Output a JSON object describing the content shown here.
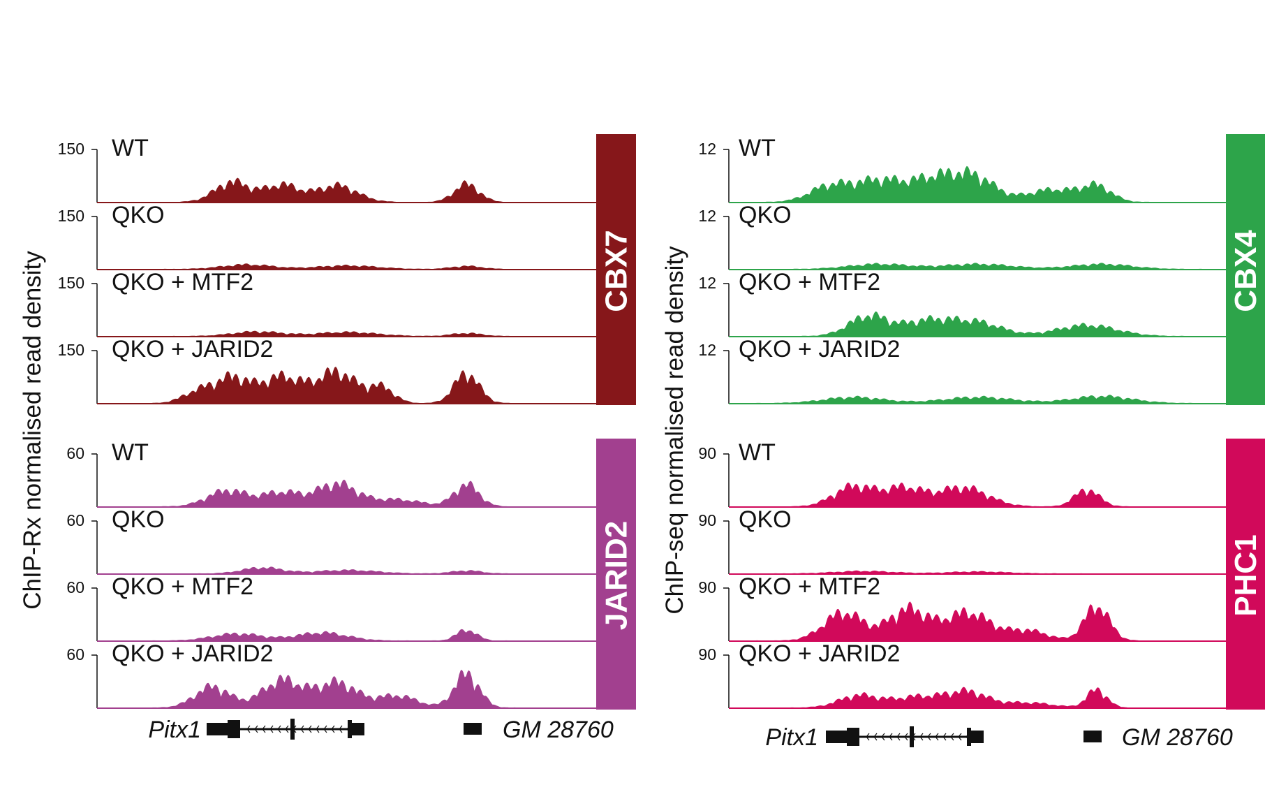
{
  "chart_data": {
    "type": "area",
    "title": "",
    "panels": [
      {
        "name": "left",
        "ylabel": "ChIP-Rx normalised read density",
        "genes": [
          {
            "name": "Pitx1"
          },
          {
            "name": "GM 28760"
          }
        ],
        "groups": [
          {
            "protein": "CBX7",
            "color": "#86171a",
            "ymax": 150,
            "tracks": [
              {
                "condition": "WT",
                "peaks": [
                  [
                    0.27,
                    0.4,
                    0.035
                  ],
                  [
                    0.37,
                    0.34,
                    0.035
                  ],
                  [
                    0.48,
                    0.33,
                    0.04
                  ],
                  [
                    0.74,
                    0.36,
                    0.025
                  ]
                ]
              },
              {
                "condition": "QKO",
                "peaks": [
                  [
                    0.3,
                    0.09,
                    0.05
                  ],
                  [
                    0.5,
                    0.07,
                    0.06
                  ],
                  [
                    0.74,
                    0.06,
                    0.03
                  ]
                ]
              },
              {
                "condition": "QKO + MTF2",
                "peaks": [
                  [
                    0.32,
                    0.09,
                    0.05
                  ],
                  [
                    0.5,
                    0.08,
                    0.06
                  ],
                  [
                    0.74,
                    0.06,
                    0.03
                  ]
                ]
              },
              {
                "condition": "QKO + JARID2",
                "peaks": [
                  [
                    0.2,
                    0.22,
                    0.03
                  ],
                  [
                    0.27,
                    0.5,
                    0.035
                  ],
                  [
                    0.37,
                    0.52,
                    0.04
                  ],
                  [
                    0.48,
                    0.62,
                    0.04
                  ],
                  [
                    0.57,
                    0.3,
                    0.025
                  ],
                  [
                    0.74,
                    0.6,
                    0.025
                  ]
                ]
              }
            ]
          },
          {
            "protein": "JARID2",
            "color": "#a2408f",
            "ymax": 60,
            "tracks": [
              {
                "condition": "WT",
                "peaks": [
                  [
                    0.26,
                    0.32,
                    0.04
                  ],
                  [
                    0.37,
                    0.28,
                    0.04
                  ],
                  [
                    0.48,
                    0.45,
                    0.04
                  ],
                  [
                    0.6,
                    0.14,
                    0.05
                  ],
                  [
                    0.74,
                    0.44,
                    0.025
                  ]
                ]
              },
              {
                "condition": "QKO",
                "peaks": [
                  [
                    0.33,
                    0.12,
                    0.04
                  ],
                  [
                    0.5,
                    0.07,
                    0.06
                  ],
                  [
                    0.74,
                    0.06,
                    0.03
                  ]
                ]
              },
              {
                "condition": "QKO + MTF2",
                "peaks": [
                  [
                    0.28,
                    0.14,
                    0.05
                  ],
                  [
                    0.45,
                    0.16,
                    0.05
                  ],
                  [
                    0.74,
                    0.22,
                    0.02
                  ]
                ]
              },
              {
                "condition": "QKO + JARID2",
                "peaks": [
                  [
                    0.23,
                    0.42,
                    0.035
                  ],
                  [
                    0.37,
                    0.55,
                    0.04
                  ],
                  [
                    0.48,
                    0.5,
                    0.04
                  ],
                  [
                    0.6,
                    0.24,
                    0.04
                  ],
                  [
                    0.74,
                    0.68,
                    0.025
                  ]
                ]
              }
            ]
          }
        ]
      },
      {
        "name": "right",
        "ylabel": "ChIP-seq normalised read density",
        "genes": [
          {
            "name": "Pitx1"
          },
          {
            "name": "GM 28760"
          }
        ],
        "groups": [
          {
            "protein": "CBX4",
            "color": "#2da44a",
            "ymax": 12,
            "tracks": [
              {
                "condition": "WT",
                "peaks": [
                  [
                    0.2,
                    0.3,
                    0.04
                  ],
                  [
                    0.3,
                    0.42,
                    0.05
                  ],
                  [
                    0.42,
                    0.48,
                    0.05
                  ],
                  [
                    0.5,
                    0.4,
                    0.04
                  ],
                  [
                    0.65,
                    0.25,
                    0.05
                  ],
                  [
                    0.74,
                    0.3,
                    0.03
                  ]
                ]
              },
              {
                "condition": "QKO",
                "peaks": [
                  [
                    0.3,
                    0.1,
                    0.06
                  ],
                  [
                    0.5,
                    0.1,
                    0.07
                  ],
                  [
                    0.75,
                    0.1,
                    0.06
                  ]
                ]
              },
              {
                "condition": "QKO + MTF2",
                "peaks": [
                  [
                    0.28,
                    0.4,
                    0.04
                  ],
                  [
                    0.4,
                    0.3,
                    0.05
                  ],
                  [
                    0.5,
                    0.26,
                    0.05
                  ],
                  [
                    0.72,
                    0.22,
                    0.06
                  ]
                ]
              },
              {
                "condition": "QKO + JARID2",
                "peaks": [
                  [
                    0.25,
                    0.12,
                    0.06
                  ],
                  [
                    0.5,
                    0.12,
                    0.07
                  ],
                  [
                    0.75,
                    0.14,
                    0.06
                  ]
                ]
              }
            ]
          },
          {
            "protein": "PHC1",
            "color": "#d1095a",
            "ymax": 90,
            "tracks": [
              {
                "condition": "WT",
                "peaks": [
                  [
                    0.25,
                    0.4,
                    0.04
                  ],
                  [
                    0.35,
                    0.36,
                    0.04
                  ],
                  [
                    0.47,
                    0.38,
                    0.05
                  ],
                  [
                    0.72,
                    0.34,
                    0.025
                  ]
                ]
              },
              {
                "condition": "QKO",
                "peaks": [
                  [
                    0.27,
                    0.05,
                    0.06
                  ],
                  [
                    0.5,
                    0.04,
                    0.06
                  ]
                ]
              },
              {
                "condition": "QKO + MTF2",
                "peaks": [
                  [
                    0.23,
                    0.56,
                    0.04
                  ],
                  [
                    0.36,
                    0.62,
                    0.04
                  ],
                  [
                    0.48,
                    0.56,
                    0.045
                  ],
                  [
                    0.6,
                    0.2,
                    0.04
                  ],
                  [
                    0.74,
                    0.7,
                    0.025
                  ]
                ]
              },
              {
                "condition": "QKO + JARID2",
                "peaks": [
                  [
                    0.26,
                    0.24,
                    0.04
                  ],
                  [
                    0.38,
                    0.22,
                    0.05
                  ],
                  [
                    0.48,
                    0.3,
                    0.04
                  ],
                  [
                    0.6,
                    0.1,
                    0.05
                  ],
                  [
                    0.74,
                    0.36,
                    0.02
                  ]
                ]
              }
            ]
          }
        ]
      }
    ]
  }
}
